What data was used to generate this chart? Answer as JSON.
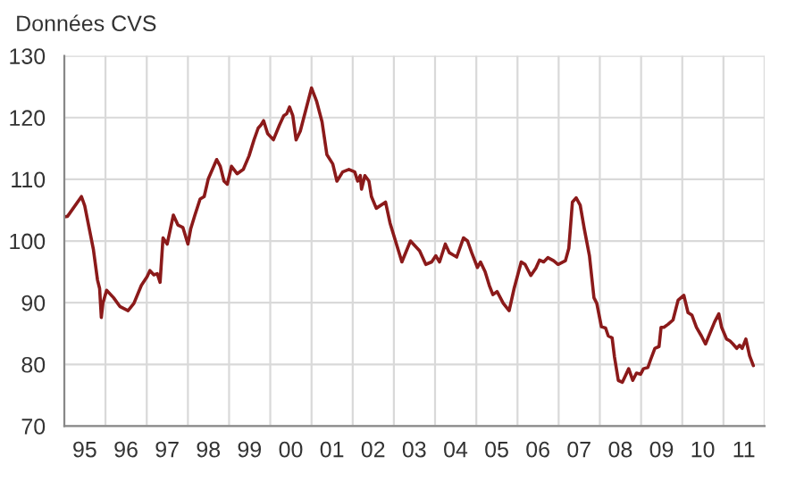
{
  "chart_data": {
    "type": "line",
    "title": "Données CVS",
    "x": [
      "1995-01-01",
      "1995-01-29",
      "1995-02-14",
      "1995-06-02",
      "1995-07-01",
      "1995-09-16",
      "1995-10-22",
      "1995-11-10",
      "1995-11-25",
      "1995-12-09",
      "1996-01-11",
      "1996-03-13",
      "1996-05-07",
      "1996-07-19",
      "1996-09-09",
      "1996-11-14",
      "1997-01-04",
      "1997-01-29",
      "1997-03-05",
      "1997-04-04",
      "1997-04-29",
      "1997-05-25",
      "1997-07-01",
      "1997-08-25",
      "1997-10-04",
      "1997-11-17",
      "1998-01-01",
      "1998-01-26",
      "1998-03-02",
      "1998-04-19",
      "1998-05-25",
      "1998-07-01",
      "1998-09-13",
      "1998-10-15",
      "1998-11-17",
      "1998-12-16",
      "1999-01-22",
      "1999-03-13",
      "1999-05-07",
      "1999-06-27",
      "1999-08-10",
      "1999-09-16",
      "1999-10-11",
      "1999-11-03",
      "1999-12-09",
      "2000-01-29",
      "2000-03-23",
      "2000-04-29",
      "2000-05-25",
      "2000-06-20",
      "2000-07-19",
      "2000-08-17",
      "2000-09-23",
      "2001-01-01",
      "2001-02-14",
      "2001-04-04",
      "2001-05-17",
      "2001-07-08",
      "2001-08-14",
      "2001-10-04",
      "2001-11-28",
      "2002-01-19",
      "2002-02-14",
      "2002-03-09",
      "2002-03-20",
      "2002-04-19",
      "2002-05-25",
      "2002-06-16",
      "2002-07-29",
      "2002-10-19",
      "2002-11-28",
      "2003-03-13",
      "2003-05-28",
      "2003-08-17",
      "2003-10-11",
      "2003-12-02",
      "2004-01-08",
      "2004-02-10",
      "2004-04-01",
      "2004-05-07",
      "2004-07-11",
      "2004-09-09",
      "2004-10-15",
      "2004-11-21",
      "2005-01-11",
      "2005-02-07",
      "2005-03-20",
      "2005-04-26",
      "2005-05-28",
      "2005-07-04",
      "2005-08-28",
      "2005-10-19",
      "2005-12-02",
      "2006-02-03",
      "2006-03-09",
      "2006-04-29",
      "2006-06-13",
      "2006-07-15",
      "2006-08-21",
      "2006-09-27",
      "2006-11-17",
      "2006-12-27",
      "2007-03-02",
      "2007-04-01",
      "2007-05-03",
      "2007-06-05",
      "2007-07-11",
      "2007-08-17",
      "2007-10-01",
      "2007-11-10",
      "2007-12-05",
      "2008-01-15",
      "2008-02-21",
      "2008-03-16",
      "2008-04-19",
      "2008-05-10",
      "2008-06-13",
      "2008-07-19",
      "2008-09-13",
      "2008-10-19",
      "2008-11-21",
      "2008-12-27",
      "2009-01-22",
      "2009-03-02",
      "2009-03-27",
      "2009-05-03",
      "2009-06-09",
      "2009-06-27",
      "2009-07-22",
      "2009-08-28",
      "2009-10-11",
      "2009-11-25",
      "2010-01-15",
      "2010-02-21",
      "2010-03-27",
      "2010-05-07",
      "2010-06-20",
      "2010-07-26",
      "2010-09-02",
      "2010-10-15",
      "2010-11-21",
      "2010-12-16",
      "2011-01-29",
      "2011-02-28",
      "2011-03-27",
      "2011-04-29",
      "2011-05-25",
      "2011-06-16",
      "2011-07-19",
      "2011-08-21",
      "2011-09-23"
    ],
    "series": [
      {
        "color": "#8b1a1a",
        "values": [
          103.9,
          104.0,
          104.4,
          107.2,
          105.7,
          98.6,
          93.7,
          92.3,
          87.6,
          89.9,
          92.0,
          90.8,
          89.4,
          88.7,
          89.9,
          92.8,
          94.2,
          95.2,
          94.5,
          94.7,
          93.3,
          100.5,
          99.5,
          104.2,
          102.6,
          102.2,
          99.5,
          102.0,
          104.1,
          106.8,
          107.2,
          110.1,
          113.2,
          112.1,
          109.7,
          109.2,
          112.1,
          110.9,
          111.6,
          113.8,
          116.4,
          118.3,
          118.8,
          119.5,
          117.4,
          116.4,
          118.8,
          120.3,
          120.6,
          121.7,
          120.3,
          116.4,
          117.8,
          124.8,
          122.7,
          119.3,
          114.0,
          112.5,
          109.7,
          111.2,
          111.6,
          111.2,
          109.7,
          110.6,
          108.4,
          110.6,
          109.7,
          107.2,
          105.3,
          106.3,
          102.9,
          96.6,
          100.0,
          98.4,
          96.2,
          96.6,
          97.6,
          96.6,
          99.5,
          98.1,
          97.4,
          100.5,
          100.0,
          98.1,
          95.7,
          96.6,
          95.0,
          92.8,
          91.3,
          91.8,
          89.9,
          88.7,
          92.3,
          96.6,
          96.2,
          94.4,
          95.6,
          96.9,
          96.6,
          97.3,
          96.8,
          96.2,
          96.8,
          98.8,
          106.3,
          107.0,
          105.8,
          101.9,
          97.6,
          90.8,
          89.9,
          86.1,
          85.9,
          84.6,
          84.3,
          81.2,
          77.4,
          77.1,
          79.3,
          77.4,
          78.6,
          78.4,
          79.3,
          79.5,
          80.8,
          82.6,
          82.9,
          86.0,
          86.0,
          86.5,
          87.2,
          90.4,
          91.2,
          88.4,
          88.0,
          86.0,
          84.6,
          83.3,
          85.0,
          86.9,
          88.2,
          86.0,
          84.1,
          83.8,
          83.3,
          82.6,
          83.1,
          82.6,
          84.1,
          81.4,
          79.8
        ]
      }
    ],
    "xlim": [
      "1995-01-01",
      "2012-01-01"
    ],
    "xticks": [
      {
        "value": "1995-01-01",
        "label": null
      },
      {
        "value": "1995-07-01",
        "label": "95"
      },
      {
        "value": "1996-01-01",
        "label": null
      },
      {
        "value": "1996-07-01",
        "label": "96"
      },
      {
        "value": "1997-01-01",
        "label": null
      },
      {
        "value": "1997-07-01",
        "label": "97"
      },
      {
        "value": "1998-01-01",
        "label": null
      },
      {
        "value": "1998-07-01",
        "label": "98"
      },
      {
        "value": "1999-01-01",
        "label": null
      },
      {
        "value": "1999-07-01",
        "label": "99"
      },
      {
        "value": "2000-01-01",
        "label": null
      },
      {
        "value": "2000-07-01",
        "label": "00"
      },
      {
        "value": "2001-01-01",
        "label": null
      },
      {
        "value": "2001-07-01",
        "label": "01"
      },
      {
        "value": "2002-01-01",
        "label": null
      },
      {
        "value": "2002-07-01",
        "label": "02"
      },
      {
        "value": "2003-01-01",
        "label": null
      },
      {
        "value": "2003-07-01",
        "label": "03"
      },
      {
        "value": "2004-01-01",
        "label": null
      },
      {
        "value": "2004-07-01",
        "label": "04"
      },
      {
        "value": "2005-01-01",
        "label": null
      },
      {
        "value": "2005-07-01",
        "label": "05"
      },
      {
        "value": "2006-01-01",
        "label": null
      },
      {
        "value": "2006-07-01",
        "label": "06"
      },
      {
        "value": "2007-01-01",
        "label": null
      },
      {
        "value": "2007-07-01",
        "label": "07"
      },
      {
        "value": "2008-01-01",
        "label": null
      },
      {
        "value": "2008-07-01",
        "label": "08"
      },
      {
        "value": "2009-01-01",
        "label": null
      },
      {
        "value": "2009-07-01",
        "label": "09"
      },
      {
        "value": "2010-01-01",
        "label": null
      },
      {
        "value": "2010-07-01",
        "label": "10"
      },
      {
        "value": "2011-01-01",
        "label": null
      },
      {
        "value": "2011-07-01",
        "label": "11"
      },
      {
        "value": "2012-01-01",
        "label": null
      }
    ],
    "ylim": [
      70,
      130
    ],
    "yticks": [
      70,
      80,
      90,
      100,
      110,
      120,
      130
    ],
    "grid": true,
    "marker": "none",
    "line_style": "solid"
  }
}
